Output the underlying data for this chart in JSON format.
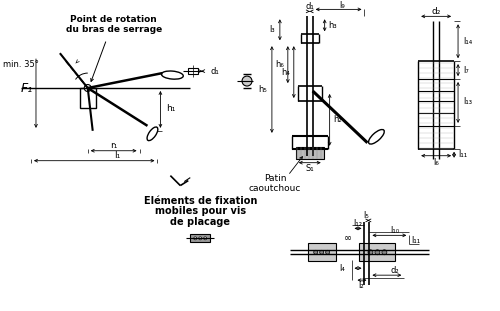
{
  "bg_color": "#ffffff",
  "lc": "#000000",
  "tc": "#000000",
  "labels": {
    "pt_rot1": "Point de rotation",
    "pt_rot2": "du bras de serrage",
    "min35": "min. 35°",
    "F1": "F₁",
    "r1": "r₁",
    "l1": "l₁",
    "h1": "h₁",
    "d1a": "d₁",
    "d1b": "d₁",
    "l3": "l₃",
    "h5": "h₅",
    "h6": "h₆",
    "h4": "h₄",
    "h2": "h₂",
    "h3": "h₃",
    "s1": "S₁",
    "l9": "l₉",
    "d2a": "d₂",
    "l14": "l₁₄",
    "l7": "l₇",
    "l13": "l₁₃",
    "l11a": "l₁₁",
    "l6": "l₆",
    "patin1": "Patin",
    "patin2": "caoutchouc",
    "elem1": "Eléments de fixation",
    "elem2": "mobiles pour vis",
    "elem3": "de placage",
    "l5": "l₅",
    "l12": "l₁₂",
    "linf": "∞",
    "l10": "l₁₀",
    "l11b": "l₁₁",
    "l4": "l₄",
    "l2": "l₂",
    "d2b": "d₂"
  }
}
